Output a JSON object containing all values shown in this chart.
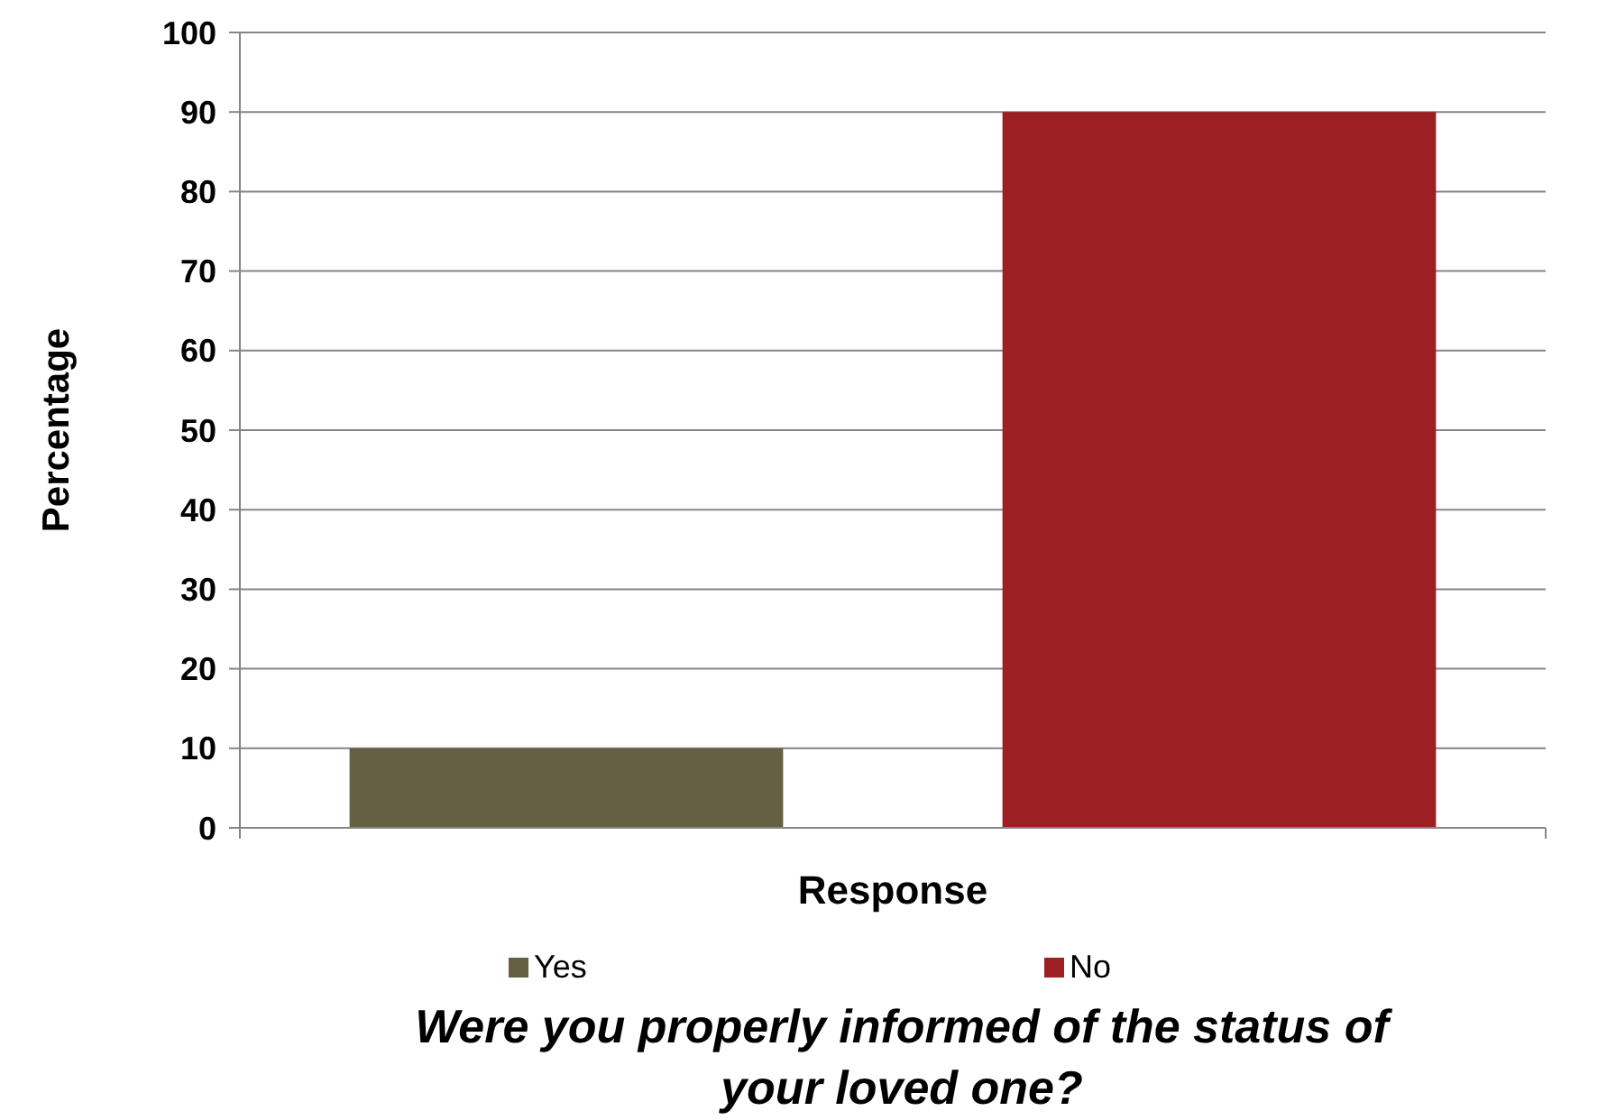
{
  "chart_data": {
    "type": "bar",
    "title": "Were you properly informed of the status of your loved one?",
    "xlabel": "Response",
    "ylabel": "Percentage",
    "categories": [
      null
    ],
    "series": [
      {
        "name": "Yes",
        "color": "#636043",
        "values": [
          10
        ]
      },
      {
        "name": "No",
        "color": "#9b1f23",
        "values": [
          90
        ]
      }
    ],
    "ylim": [
      0,
      100
    ],
    "yticks": [
      0,
      10,
      20,
      30,
      40,
      50,
      60,
      70,
      80,
      90,
      100
    ],
    "grid": "y",
    "legend": "bottom"
  }
}
